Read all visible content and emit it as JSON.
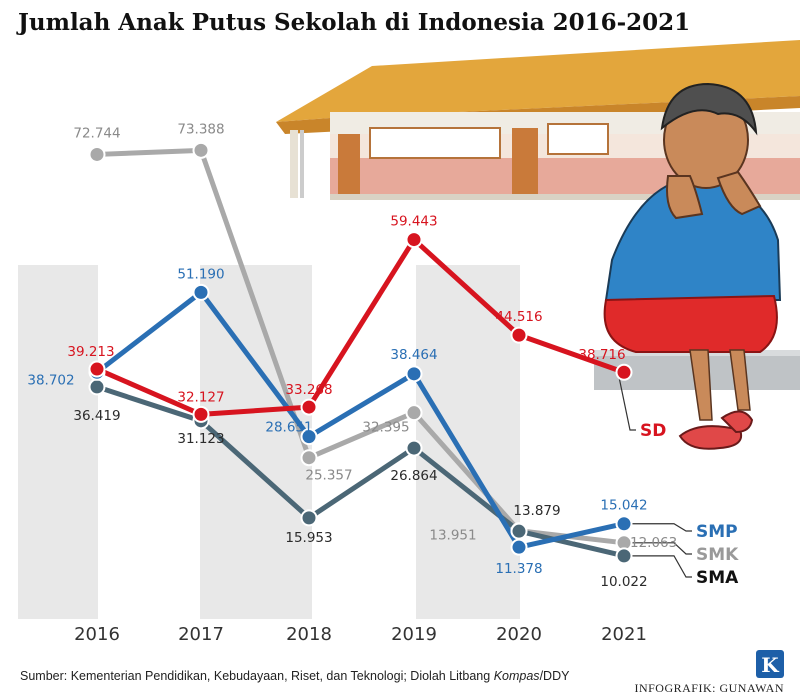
{
  "title": "Jumlah Anak Putus Sekolah di Indonesia 2016-2021",
  "source_prefix": "Sumber: Kementerian Pendidikan, Kebudayaan, Riset, dan Teknologi; Diolah Litbang ",
  "source_italic": "Kompas",
  "source_suffix": "/DDY",
  "credit": "INFOGRAFIK: GUNAWAN",
  "logo_letter": "K",
  "colors": {
    "SD": "#d7141f",
    "SMP": "#2a6fb4",
    "SMK": "#a9a9a9",
    "SMA": "#4b6776",
    "band": "#e8e8e8"
  },
  "chart_data": {
    "type": "line",
    "title": "Jumlah Anak Putus Sekolah di Indonesia 2016-2021",
    "xlabel": "",
    "ylabel": "",
    "x": [
      "2016",
      "2017",
      "2018",
      "2019",
      "2020",
      "2021"
    ],
    "ylim": [
      0,
      80000
    ],
    "grid": false,
    "legend": "end-of-line labels",
    "series": [
      {
        "name": "SD",
        "values": [
          39213,
          32127,
          33268,
          59443,
          44516,
          38716
        ],
        "labels": [
          "39.213",
          "32.127",
          "33.268",
          "59.443",
          "44.516",
          "38.716"
        ]
      },
      {
        "name": "SMP",
        "values": [
          38702,
          51190,
          28651,
          38464,
          11378,
          15042
        ],
        "labels": [
          "38.702",
          "51.190",
          "28.651",
          "38.464",
          "11.378",
          "15.042"
        ]
      },
      {
        "name": "SMK",
        "values": [
          72744,
          73388,
          25357,
          32395,
          13951,
          12063
        ],
        "labels": [
          "72.744",
          "73.388",
          "25.357",
          "32.395",
          "13.951",
          "12.063"
        ]
      },
      {
        "name": "SMA",
        "values": [
          36419,
          31123,
          15953,
          26864,
          13879,
          10022
        ],
        "labels": [
          "36.419",
          "31.123",
          "15.953",
          "26.864",
          "13.879",
          "10.022"
        ]
      }
    ]
  }
}
